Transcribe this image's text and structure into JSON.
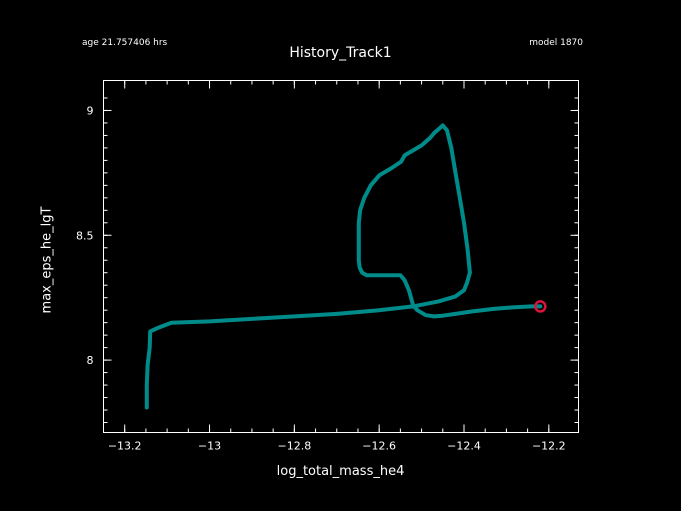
{
  "header": {
    "age_text": "age 21.757406 hrs",
    "model_text": "model 1870"
  },
  "chart_data": {
    "type": "line",
    "title": "History_Track1",
    "xlabel": "log_total_mass_he4",
    "ylabel": "max_eps_he_lgT",
    "xlim": [
      -13.25,
      -12.13
    ],
    "ylim": [
      7.71,
      9.12
    ],
    "x_ticks": [
      -13.2,
      -13,
      -12.8,
      -12.6,
      -12.4,
      -12.2
    ],
    "x_tick_labels": [
      "−13.2",
      "−13",
      "−12.8",
      "−12.6",
      "−12.4",
      "−12.2"
    ],
    "y_ticks": [
      8,
      8.5,
      9
    ],
    "y_tick_labels": [
      "8",
      "8.5",
      "9"
    ],
    "grid": false,
    "series": [
      {
        "color": "#008b8b",
        "x": [
          -13.148,
          -13.148,
          -13.146,
          -13.141,
          -13.14,
          -13.12,
          -13.09,
          -13.0,
          -12.9,
          -12.8,
          -12.7,
          -12.6,
          -12.52,
          -12.46,
          -12.42,
          -12.4,
          -12.393,
          -12.386,
          -12.392,
          -12.4,
          -12.41,
          -12.42,
          -12.43,
          -12.44,
          -12.45,
          -12.46,
          -12.47,
          -12.48,
          -12.5,
          -12.54,
          -12.548,
          -12.57,
          -12.6,
          -12.62,
          -12.635,
          -12.645,
          -12.648,
          -12.648,
          -12.646,
          -12.64,
          -12.63,
          -12.62,
          -12.61,
          -12.6,
          -12.55,
          -12.54,
          -12.53,
          -12.525,
          -12.52,
          -12.51,
          -12.49,
          -12.47,
          -12.45,
          -12.42,
          -12.38,
          -12.33,
          -12.28,
          -12.24,
          -12.22
        ],
        "y": [
          7.81,
          7.9,
          7.98,
          8.05,
          8.115,
          8.13,
          8.15,
          8.155,
          8.165,
          8.175,
          8.185,
          8.2,
          8.215,
          8.235,
          8.255,
          8.28,
          8.31,
          8.35,
          8.45,
          8.55,
          8.65,
          8.75,
          8.85,
          8.92,
          8.94,
          8.925,
          8.91,
          8.89,
          8.86,
          8.82,
          8.795,
          8.77,
          8.74,
          8.7,
          8.65,
          8.6,
          8.55,
          8.4,
          8.37,
          8.35,
          8.34,
          8.34,
          8.34,
          8.34,
          8.34,
          8.32,
          8.28,
          8.25,
          8.22,
          8.2,
          8.18,
          8.175,
          8.178,
          8.185,
          8.195,
          8.205,
          8.212,
          8.215,
          8.215
        ]
      }
    ],
    "marker": {
      "x": -12.22,
      "y": 8.215,
      "color": "#dc143c"
    }
  }
}
